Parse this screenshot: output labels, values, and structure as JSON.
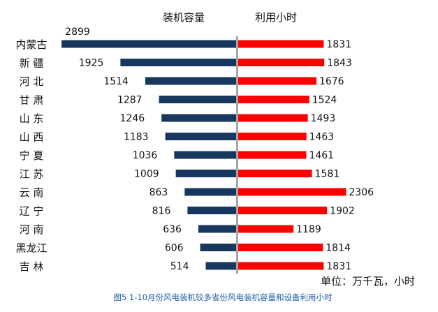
{
  "chart_data": {
    "type": "bar",
    "subtype": "butterfly",
    "title": "图5   1-10月份风电装机较多省份风电装机容量和设备利用小时",
    "unit_note": "单位：万千瓦，小时",
    "categories": [
      "内蒙古",
      "新 疆",
      "河 北",
      "甘 肃",
      "山 东",
      "山 西",
      "宁 夏",
      "江 苏",
      "云 南",
      "辽 宁",
      "河 南",
      "黑龙江",
      "吉 林"
    ],
    "series": [
      {
        "name": "装机容量",
        "side": "left",
        "color": "#17375e",
        "values": [
          2899,
          1925,
          1514,
          1287,
          1246,
          1183,
          1036,
          1009,
          863,
          816,
          636,
          606,
          514
        ]
      },
      {
        "name": "利用小时",
        "side": "right",
        "color": "#ff0000",
        "values": [
          1831,
          1843,
          1676,
          1524,
          1493,
          1463,
          1461,
          1581,
          2306,
          1902,
          1189,
          1814,
          1831
        ]
      }
    ],
    "center_line_color": "#a6a6a6",
    "title_color": "#1f5fa8"
  }
}
